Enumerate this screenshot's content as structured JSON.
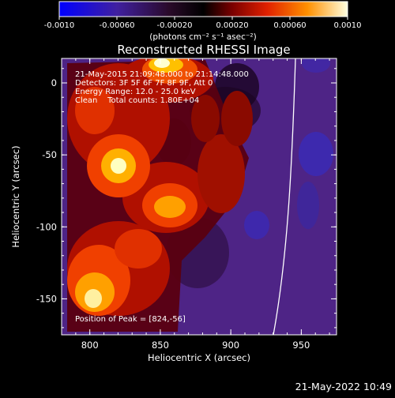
{
  "colorbar": {
    "tick_labels": [
      "-0.0010",
      "-0.00060",
      "-0.00020",
      "0.00020",
      "0.00060",
      "0.0010"
    ],
    "range": [
      -0.001,
      0.001
    ],
    "unit_label": "(photons cm⁻² s⁻¹ asec⁻²)"
  },
  "plot": {
    "title": "Reconstructed RHESSI Image",
    "xlabel": "Heliocentric X (arcsec)",
    "ylabel": "Heliocentric Y (arcsec)",
    "xlim": [
      780,
      975
    ],
    "ylim": [
      -175,
      17
    ],
    "x_ticks": [
      "800",
      "850",
      "900",
      "950"
    ],
    "y_ticks": [
      "0",
      "-50",
      "-100",
      "-150"
    ],
    "info_lines": [
      "21-May-2015 21:09:48.000 to 21:14:48.000",
      "Detectors: 3F 5F 6F 7F 8F 9F, Att 0",
      "Energy Range: 12.0 - 25.0 keV",
      "Clean    Total counts: 1.80E+04"
    ],
    "peak_label": "Position of Peak = [824,-56]"
  },
  "footer": {
    "timestamp": "21-May-2022 10:49"
  }
}
